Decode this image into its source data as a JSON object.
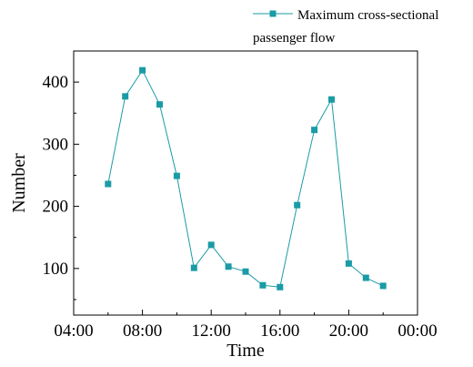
{
  "chart_data": {
    "type": "line",
    "title": "",
    "xlabel": "Time",
    "ylabel": "Number",
    "x_ticks": [
      {
        "hour": 4,
        "label": "04:00"
      },
      {
        "hour": 8,
        "label": "08:00"
      },
      {
        "hour": 12,
        "label": "12:00"
      },
      {
        "hour": 16,
        "label": "16:00"
      },
      {
        "hour": 20,
        "label": "20:00"
      },
      {
        "hour": 24,
        "label": "00:00"
      }
    ],
    "y_ticks": [
      100,
      200,
      300,
      400
    ],
    "xlim_hours": [
      4,
      24
    ],
    "ylim": [
      25,
      450
    ],
    "grid": false,
    "legend_position": "top-right",
    "series": [
      {
        "name": "Maximum cross-sectional passenger flow",
        "legend_lines": [
          "Maximum cross-sectional",
          "passenger flow"
        ],
        "color": "#1a9ba5",
        "marker": "square",
        "x_hours": [
          6,
          7,
          8,
          9,
          10,
          11,
          12,
          13,
          14,
          15,
          16,
          17,
          18,
          19,
          20,
          21,
          22
        ],
        "values": [
          236,
          377,
          419,
          364,
          249,
          101,
          138,
          103,
          95,
          73,
          70,
          202,
          323,
          372,
          108,
          85,
          72
        ]
      }
    ]
  }
}
